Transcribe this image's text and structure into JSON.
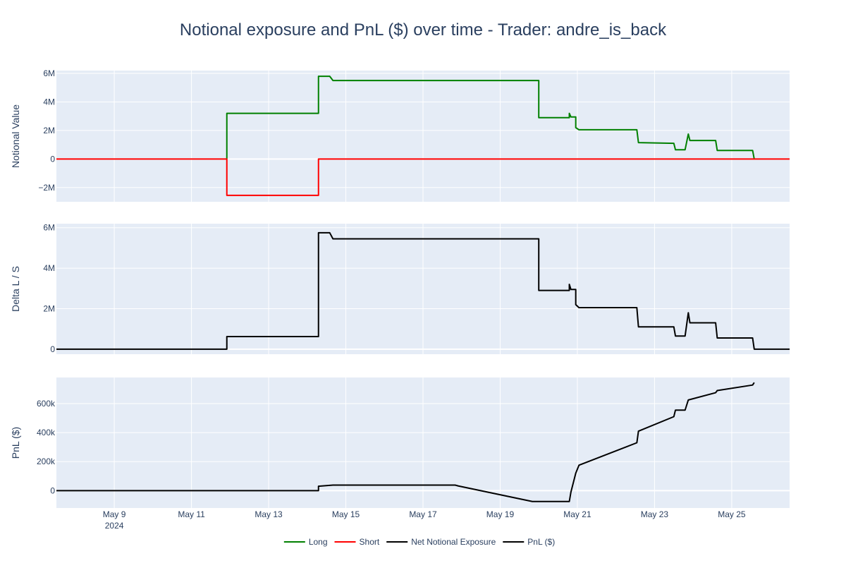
{
  "chart_data": {
    "type": "line",
    "title": "Notional exposure and PnL ($) over time - Trader: andre_is_back",
    "colors": {
      "plot_bg": "#e5ecf6",
      "grid": "#ffffff",
      "text": "#2a3f5f",
      "long": "#008000",
      "short": "#ff0000",
      "net": "#000000",
      "pnl": "#000000"
    },
    "x_range": [
      "2024-05-07 12:00",
      "2024-05-26 12:00"
    ],
    "x_ticks": [
      {
        "date": "2024-05-09",
        "label": "May 9",
        "sublabel": "2024"
      },
      {
        "date": "2024-05-11",
        "label": "May 11"
      },
      {
        "date": "2024-05-13",
        "label": "May 13"
      },
      {
        "date": "2024-05-15",
        "label": "May 15"
      },
      {
        "date": "2024-05-17",
        "label": "May 17"
      },
      {
        "date": "2024-05-19",
        "label": "May 19"
      },
      {
        "date": "2024-05-21",
        "label": "May 21"
      },
      {
        "date": "2024-05-23",
        "label": "May 23"
      },
      {
        "date": "2024-05-25",
        "label": "May 25"
      }
    ],
    "panels": [
      {
        "ylabel": "Notional Value",
        "ylim": [
          -3000000,
          6200000
        ],
        "y_ticks": [
          {
            "value": -2000000,
            "label": "−2M"
          },
          {
            "value": 0,
            "label": "0"
          },
          {
            "value": 2000000,
            "label": "2M"
          },
          {
            "value": 4000000,
            "label": "4M"
          },
          {
            "value": 6000000,
            "label": "6M"
          }
        ],
        "series": [
          {
            "name": "Long",
            "color_key": "long",
            "points": [
              [
                "2024-05-11 22:00",
                0
              ],
              [
                "2024-05-11 22:00",
                3200000
              ],
              [
                "2024-05-14 07:00",
                3200000
              ],
              [
                "2024-05-14 07:00",
                5800000
              ],
              [
                "2024-05-14 14:00",
                5800000
              ],
              [
                "2024-05-14 16:00",
                5500000
              ],
              [
                "2024-05-20 00:00",
                5500000
              ],
              [
                "2024-05-20 00:00",
                2900000
              ],
              [
                "2024-05-20 19:00",
                2900000
              ],
              [
                "2024-05-20 19:00",
                3200000
              ],
              [
                "2024-05-20 20:00",
                2950000
              ],
              [
                "2024-05-20 23:00",
                2950000
              ],
              [
                "2024-05-20 23:00",
                2200000
              ],
              [
                "2024-05-21 01:00",
                2050000
              ],
              [
                "2024-05-22 13:00",
                2050000
              ],
              [
                "2024-05-22 14:00",
                1150000
              ],
              [
                "2024-05-23 12:00",
                1100000
              ],
              [
                "2024-05-23 13:00",
                650000
              ],
              [
                "2024-05-23 19:00",
                650000
              ],
              [
                "2024-05-23 21:00",
                1750000
              ],
              [
                "2024-05-23 22:00",
                1300000
              ],
              [
                "2024-05-24 14:00",
                1300000
              ],
              [
                "2024-05-24 15:00",
                600000
              ],
              [
                "2024-05-25 13:00",
                600000
              ],
              [
                "2024-05-25 14:00",
                0
              ]
            ]
          },
          {
            "name": "Short",
            "color_key": "short",
            "points": [
              [
                "2024-05-07 12:00",
                0
              ],
              [
                "2024-05-11 22:00",
                0
              ],
              [
                "2024-05-11 22:00",
                -2550000
              ],
              [
                "2024-05-14 07:00",
                -2550000
              ],
              [
                "2024-05-14 07:00",
                0
              ],
              [
                "2024-05-26 12:00",
                0
              ]
            ]
          }
        ]
      },
      {
        "ylabel": "Delta L / S",
        "ylim": [
          -250000,
          6200000
        ],
        "y_ticks": [
          {
            "value": 0,
            "label": "0"
          },
          {
            "value": 2000000,
            "label": "2M"
          },
          {
            "value": 4000000,
            "label": "4M"
          },
          {
            "value": 6000000,
            "label": "6M"
          }
        ],
        "series": [
          {
            "name": "Net Notional Exposure",
            "color_key": "net",
            "points": [
              [
                "2024-05-07 12:00",
                0
              ],
              [
                "2024-05-11 22:00",
                0
              ],
              [
                "2024-05-11 22:00",
                620000
              ],
              [
                "2024-05-14 07:00",
                620000
              ],
              [
                "2024-05-14 07:00",
                5750000
              ],
              [
                "2024-05-14 14:00",
                5750000
              ],
              [
                "2024-05-14 16:00",
                5450000
              ],
              [
                "2024-05-20 00:00",
                5450000
              ],
              [
                "2024-05-20 00:00",
                2900000
              ],
              [
                "2024-05-20 19:00",
                2900000
              ],
              [
                "2024-05-20 19:00",
                3200000
              ],
              [
                "2024-05-20 20:00",
                2950000
              ],
              [
                "2024-05-20 23:00",
                2950000
              ],
              [
                "2024-05-20 23:00",
                2200000
              ],
              [
                "2024-05-21 01:00",
                2050000
              ],
              [
                "2024-05-22 13:00",
                2050000
              ],
              [
                "2024-05-22 14:00",
                1100000
              ],
              [
                "2024-05-23 12:00",
                1100000
              ],
              [
                "2024-05-23 13:00",
                650000
              ],
              [
                "2024-05-23 19:00",
                650000
              ],
              [
                "2024-05-23 21:00",
                1800000
              ],
              [
                "2024-05-23 22:00",
                1300000
              ],
              [
                "2024-05-24 14:00",
                1300000
              ],
              [
                "2024-05-24 15:00",
                550000
              ],
              [
                "2024-05-25 13:00",
                550000
              ],
              [
                "2024-05-25 14:00",
                0
              ],
              [
                "2024-05-26 12:00",
                0
              ]
            ]
          }
        ]
      },
      {
        "ylabel": "PnL ($)",
        "ylim": [
          -120000,
          780000
        ],
        "y_ticks": [
          {
            "value": 0,
            "label": "0"
          },
          {
            "value": 200000,
            "label": "200k"
          },
          {
            "value": 400000,
            "label": "400k"
          },
          {
            "value": 600000,
            "label": "600k"
          }
        ],
        "series": [
          {
            "name": "PnL ($)",
            "color_key": "pnl",
            "points": [
              [
                "2024-05-07 12:00",
                0
              ],
              [
                "2024-05-14 07:00",
                0
              ],
              [
                "2024-05-14 07:00",
                30000
              ],
              [
                "2024-05-14 16:00",
                38000
              ],
              [
                "2024-05-17 20:00",
                38000
              ],
              [
                "2024-05-17 22:00",
                32000
              ],
              [
                "2024-05-19 20:00",
                -75000
              ],
              [
                "2024-05-20 19:00",
                -75000
              ],
              [
                "2024-05-20 20:00",
                -10000
              ],
              [
                "2024-05-20 23:00",
                120000
              ],
              [
                "2024-05-21 01:00",
                175000
              ],
              [
                "2024-05-22 13:00",
                330000
              ],
              [
                "2024-05-22 14:00",
                410000
              ],
              [
                "2024-05-23 12:00",
                510000
              ],
              [
                "2024-05-23 13:00",
                555000
              ],
              [
                "2024-05-23 19:00",
                555000
              ],
              [
                "2024-05-23 21:00",
                625000
              ],
              [
                "2024-05-24 14:00",
                675000
              ],
              [
                "2024-05-24 15:00",
                690000
              ],
              [
                "2024-05-25 13:00",
                728000
              ],
              [
                "2024-05-25 14:00",
                745000
              ]
            ]
          }
        ]
      }
    ],
    "legend": {
      "placement": "bottom-center",
      "items": [
        {
          "name": "Long",
          "color_key": "long"
        },
        {
          "name": "Short",
          "color_key": "short"
        },
        {
          "name": "Net Notional Exposure",
          "color_key": "net"
        },
        {
          "name": "PnL ($)",
          "color_key": "pnl"
        }
      ]
    }
  }
}
